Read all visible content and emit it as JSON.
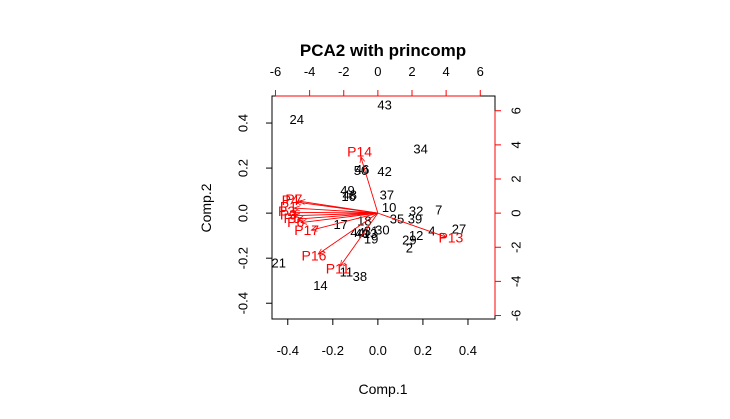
{
  "chart_data": {
    "type": "scatter",
    "title": "PCA2 with princomp",
    "xlabel": "Comp.1",
    "ylabel": "Comp.2",
    "xlim": [
      -0.47,
      0.52
    ],
    "ylim": [
      -0.47,
      0.52
    ],
    "x_ticks": [
      -0.4,
      -0.2,
      0.0,
      0.2,
      0.4
    ],
    "y_ticks": [
      -0.4,
      -0.2,
      0.0,
      0.2,
      0.4
    ],
    "top_axis_ticks": [
      -6,
      -4,
      -2,
      0,
      2,
      4,
      6
    ],
    "right_axis_ticks": [
      -6,
      -4,
      -2,
      0,
      2,
      4,
      6
    ],
    "loading_scale_factor": 13.2,
    "point_color": "#000000",
    "arrow_color": "#ff0000",
    "observations": [
      {
        "label": "43",
        "x": 0.03,
        "y": 0.475
      },
      {
        "label": "24",
        "x": -0.36,
        "y": 0.41
      },
      {
        "label": "34",
        "x": 0.19,
        "y": 0.28
      },
      {
        "label": "50",
        "x": -0.075,
        "y": 0.185
      },
      {
        "label": "46",
        "x": -0.07,
        "y": 0.19
      },
      {
        "label": "42",
        "x": 0.03,
        "y": 0.18
      },
      {
        "label": "49",
        "x": -0.135,
        "y": 0.095
      },
      {
        "label": "48",
        "x": -0.125,
        "y": 0.075
      },
      {
        "label": "16",
        "x": -0.13,
        "y": 0.07
      },
      {
        "label": "37",
        "x": 0.04,
        "y": 0.075
      },
      {
        "label": "10",
        "x": 0.05,
        "y": 0.02
      },
      {
        "label": "32",
        "x": 0.17,
        "y": 0.005
      },
      {
        "label": "7",
        "x": 0.27,
        "y": 0.01
      },
      {
        "label": "35",
        "x": 0.085,
        "y": -0.03
      },
      {
        "label": "39",
        "x": 0.165,
        "y": -0.03
      },
      {
        "label": "18",
        "x": -0.06,
        "y": -0.04
      },
      {
        "label": "17",
        "x": -0.165,
        "y": -0.055
      },
      {
        "label": "44",
        "x": -0.09,
        "y": -0.09
      },
      {
        "label": "31",
        "x": -0.03,
        "y": -0.085
      },
      {
        "label": "30",
        "x": 0.02,
        "y": -0.08
      },
      {
        "label": "40",
        "x": -0.07,
        "y": -0.095
      },
      {
        "label": "13",
        "x": -0.035,
        "y": -0.095
      },
      {
        "label": "19",
        "x": -0.03,
        "y": -0.12
      },
      {
        "label": "12",
        "x": 0.17,
        "y": -0.105
      },
      {
        "label": "4",
        "x": 0.24,
        "y": -0.085
      },
      {
        "label": "27",
        "x": 0.36,
        "y": -0.075
      },
      {
        "label": "29",
        "x": 0.14,
        "y": -0.125
      },
      {
        "label": "2",
        "x": 0.14,
        "y": -0.16
      },
      {
        "label": "21",
        "x": -0.44,
        "y": -0.225
      },
      {
        "label": "11",
        "x": -0.14,
        "y": -0.265
      },
      {
        "label": "38",
        "x": -0.08,
        "y": -0.285
      },
      {
        "label": "14",
        "x": -0.255,
        "y": -0.325
      }
    ],
    "loadings": [
      {
        "label": "P14",
        "x": -1.0,
        "y": 3.3
      },
      {
        "label": "P13",
        "x": 4.0,
        "y": -1.4
      },
      {
        "label": "P16",
        "x": -3.5,
        "y": -2.4
      },
      {
        "label": "P11",
        "x": -2.2,
        "y": -3.1
      },
      {
        "label": "P17",
        "x": -3.9,
        "y": -1.0
      },
      {
        "label": "P4",
        "x": -4.8,
        "y": 0.65
      },
      {
        "label": "P7",
        "x": -4.6,
        "y": 0.7
      },
      {
        "label": "P1",
        "x": -4.9,
        "y": 0.3
      },
      {
        "label": "P2",
        "x": -5.0,
        "y": 0.05
      },
      {
        "label": "P3",
        "x": -4.9,
        "y": -0.15
      },
      {
        "label": "P5",
        "x": -4.7,
        "y": -0.35
      },
      {
        "label": "P6",
        "x": -4.5,
        "y": -0.55
      }
    ]
  }
}
